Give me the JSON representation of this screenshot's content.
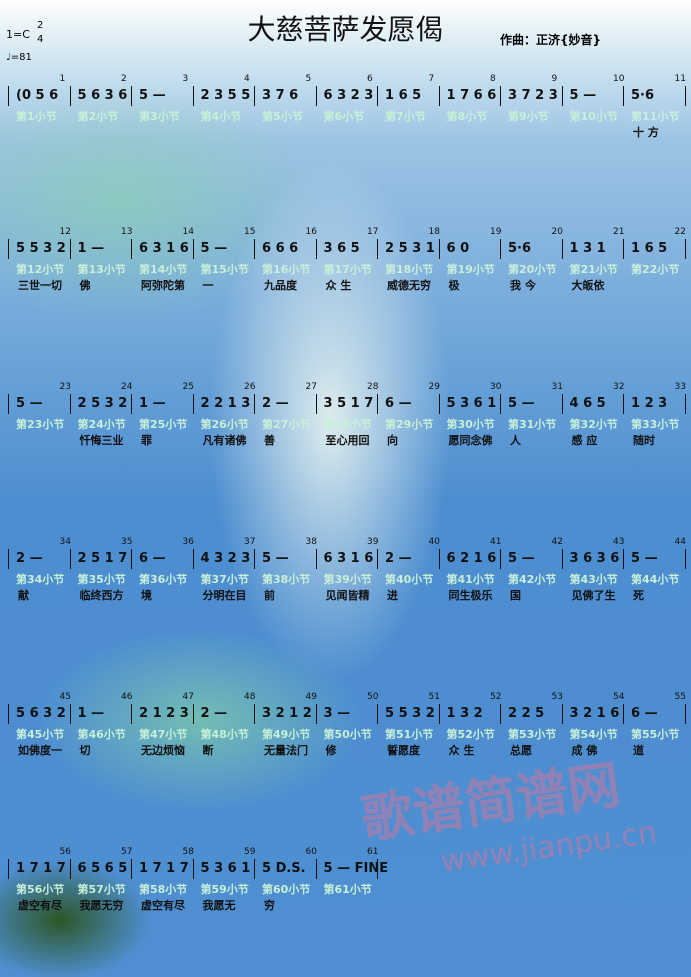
{
  "header": {
    "title": "大慈菩萨发愿偈",
    "key": "1=C",
    "time_top": "2",
    "time_bottom": "4",
    "tempo": "♩=81",
    "composer": "作曲：正济{妙音}"
  },
  "rows": [
    {
      "measures": [
        {
          "number": "1",
          "notes": "(0 5 6",
          "label": "第1小节"
        },
        {
          "number": "2",
          "notes": "5 6 3 6",
          "label": "第2小节"
        },
        {
          "number": "3",
          "notes": "5 —",
          "label": "第3小节"
        },
        {
          "number": "4",
          "notes": "2 3 5 5",
          "label": "第4小节"
        },
        {
          "number": "5",
          "notes": "3 7 6",
          "label": "第5小节"
        },
        {
          "number": "6",
          "notes": "6 3 2 3",
          "label": "第6小节"
        },
        {
          "number": "7",
          "notes": "1 6 5",
          "label": "第7小节"
        },
        {
          "number": "8",
          "notes": "1 7 6 6",
          "label": "第8小节"
        },
        {
          "number": "9",
          "notes": "3 7 2 3",
          "label": "第9小节"
        },
        {
          "number": "10",
          "notes": "5 —",
          "label": "第10小节"
        },
        {
          "number": "11",
          "notes": "5·6",
          "label": "第11小节"
        }
      ],
      "lyrics": [
        "",
        "",
        "",
        "",
        "",
        "",
        "",
        "",
        "",
        "",
        "十 方"
      ]
    },
    {
      "measures": [
        {
          "number": "12",
          "notes": "5 5 3 2",
          "label": "第12小节"
        },
        {
          "number": "13",
          "notes": "1 —",
          "label": "第13小节"
        },
        {
          "number": "14",
          "notes": "6 3 1 6",
          "label": "第14小节"
        },
        {
          "number": "15",
          "notes": "5 —",
          "label": "第15小节"
        },
        {
          "number": "16",
          "notes": "6 6 6",
          "label": "第16小节"
        },
        {
          "number": "17",
          "notes": "3 6 5",
          "label": "第17小节"
        },
        {
          "number": "18",
          "notes": "2 5 3 1",
          "label": "第18小节"
        },
        {
          "number": "19",
          "notes": "6 0",
          "label": "第19小节"
        },
        {
          "number": "20",
          "notes": "5·6",
          "label": "第20小节"
        },
        {
          "number": "21",
          "notes": "1 3 1",
          "label": "第21小节"
        },
        {
          "number": "22",
          "notes": "1 6 5",
          "label": "第22小节"
        }
      ],
      "lyrics": [
        "三世一切",
        "佛",
        "阿弥陀第",
        "一",
        "九品度",
        "众 生",
        "威德无穷",
        "极",
        "我 今",
        "大皈依",
        ""
      ]
    },
    {
      "measures": [
        {
          "number": "23",
          "notes": "5 —",
          "label": "第23小节"
        },
        {
          "number": "24",
          "notes": "2 5 3 2",
          "label": "第24小节"
        },
        {
          "number": "25",
          "notes": "1 —",
          "label": "第25小节"
        },
        {
          "number": "26",
          "notes": "2 2 1 3",
          "label": "第26小节"
        },
        {
          "number": "27",
          "notes": "2 —",
          "label": "第27小节"
        },
        {
          "number": "28",
          "notes": "3 5 1 7",
          "label": "第28小节"
        },
        {
          "number": "29",
          "notes": "6 —",
          "label": "第29小节"
        },
        {
          "number": "30",
          "notes": "5 3 6 1",
          "label": "第30小节"
        },
        {
          "number": "31",
          "notes": "5 —",
          "label": "第31小节"
        },
        {
          "number": "32",
          "notes": "4 6 5",
          "label": "第32小节"
        },
        {
          "number": "33",
          "notes": "1 2 3",
          "label": "第33小节"
        }
      ],
      "lyrics": [
        "",
        "忏悔三业",
        "罪",
        "凡有诸佛",
        "善",
        "至心用回",
        "向",
        "愿同念佛",
        "人",
        "感 应",
        "随时"
      ]
    },
    {
      "measures": [
        {
          "number": "34",
          "notes": "2 —",
          "label": "第34小节"
        },
        {
          "number": "35",
          "notes": "2 5 1 7",
          "label": "第35小节"
        },
        {
          "number": "36",
          "notes": "6 —",
          "label": "第36小节"
        },
        {
          "number": "37",
          "notes": "4 3 2 3",
          "label": "第37小节"
        },
        {
          "number": "38",
          "notes": "5 —",
          "label": "第38小节"
        },
        {
          "number": "39",
          "notes": "6 3 1 6",
          "label": "第39小节"
        },
        {
          "number": "40",
          "notes": "2 —",
          "label": "第40小节"
        },
        {
          "number": "41",
          "notes": "6 2 1 6",
          "label": "第41小节"
        },
        {
          "number": "42",
          "notes": "5 —",
          "label": "第42小节"
        },
        {
          "number": "43",
          "notes": "3 6 3 6",
          "label": "第43小节"
        },
        {
          "number": "44",
          "notes": "5 —",
          "label": "第44小节"
        }
      ],
      "lyrics": [
        "献",
        "临终西方",
        "境",
        "分明在目",
        "前",
        "见闻皆精",
        "进",
        "同生极乐",
        "国",
        "见佛了生",
        "死"
      ]
    },
    {
      "measures": [
        {
          "number": "45",
          "notes": "5 6 3 2",
          "label": "第45小节"
        },
        {
          "number": "46",
          "notes": "1 —",
          "label": "第46小节"
        },
        {
          "number": "47",
          "notes": "2 1 2 3",
          "label": "第47小节"
        },
        {
          "number": "48",
          "notes": "2 —",
          "label": "第48小节"
        },
        {
          "number": "49",
          "notes": "3 2 1 2",
          "label": "第49小节"
        },
        {
          "number": "50",
          "notes": "3 —",
          "label": "第50小节"
        },
        {
          "number": "51",
          "notes": "5 5 3 2",
          "label": "第51小节"
        },
        {
          "number": "52",
          "notes": "1 3 2",
          "label": "第52小节"
        },
        {
          "number": "53",
          "notes": "2 2 5",
          "label": "第53小节"
        },
        {
          "number": "54",
          "notes": "3 2 1 6",
          "label": "第54小节"
        },
        {
          "number": "55",
          "notes": "6 —",
          "label": "第55小节"
        }
      ],
      "lyrics": [
        "如佛度一",
        "切",
        "无边烦恼",
        "断",
        "无量法门",
        "修",
        "誓愿度",
        "众 生",
        "总愿",
        "成 佛",
        "道"
      ]
    },
    {
      "measures": [
        {
          "number": "56",
          "notes": "1 7 1 7",
          "label": "第56小节"
        },
        {
          "number": "57",
          "notes": "6 5 6 5",
          "label": "第57小节"
        },
        {
          "number": "58",
          "notes": "1 7 1 7",
          "label": "第58小节"
        },
        {
          "number": "59",
          "notes": "5 3 6 1",
          "label": "第59小节"
        },
        {
          "number": "60",
          "notes": "5 D.S.",
          "label": "第60小节"
        },
        {
          "number": "61",
          "notes": "5 — FINE",
          "label": "第61小节"
        }
      ],
      "lyrics": [
        "虚空有尽",
        "我愿无穷",
        "虚空有尽",
        "我愿无",
        "穷",
        ""
      ]
    }
  ],
  "watermark": {
    "text": "歌谱简谱网",
    "url": "www.jianpu.cn"
  }
}
